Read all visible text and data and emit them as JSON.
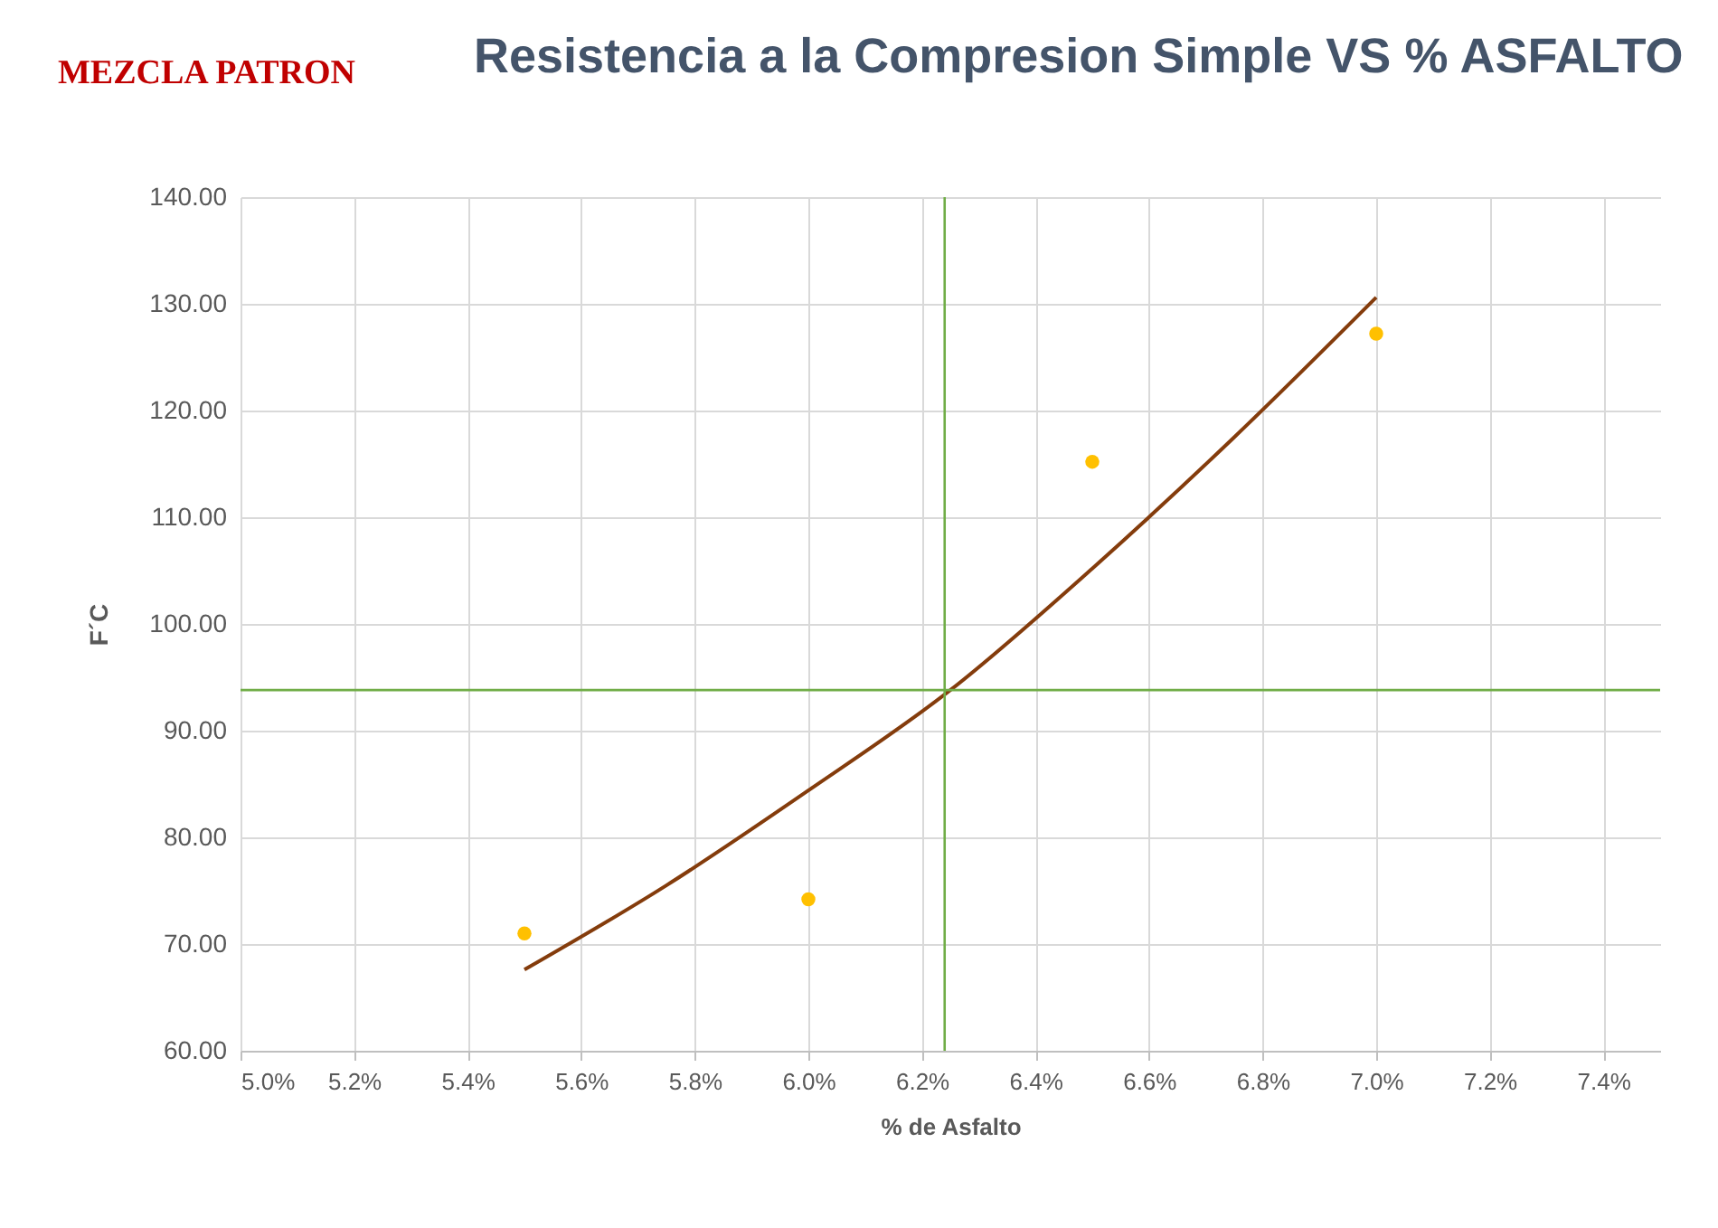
{
  "chart_data": {
    "type": "scatter",
    "title": "Resistencia a la Compresion Simple VS % ASFALTO",
    "xlabel": "% de Asfalto",
    "ylabel": "F´C",
    "annotations": [
      "MEZCLA PATRON"
    ],
    "series": [
      {
        "type": "scatter",
        "color": "#ffc000",
        "x": [
          5.5,
          6.0,
          6.5,
          7.0
        ],
        "values": [
          71.0,
          74.2,
          115.2,
          127.2
        ],
        "marker": "circle"
      },
      {
        "type": "line",
        "color": "#843c0c",
        "x": [
          5.5,
          5.75,
          6.0,
          6.25,
          6.5,
          6.75,
          7.0
        ],
        "values": [
          67.6,
          75.5,
          84.4,
          93.8,
          105.2,
          117.5,
          130.6
        ],
        "marker": "none"
      }
    ],
    "xlim": [
      5.0,
      7.5
    ],
    "xticks": [
      {
        "value": 5.0,
        "label": "5.0%"
      },
      {
        "value": 5.2,
        "label": "5.2%"
      },
      {
        "value": 5.4,
        "label": "5.4%"
      },
      {
        "value": 5.6,
        "label": "5.6%"
      },
      {
        "value": 5.8,
        "label": "5.8%"
      },
      {
        "value": 6.0,
        "label": "6.0%"
      },
      {
        "value": 6.2,
        "label": "6.2%"
      },
      {
        "value": 6.4,
        "label": "6.4%"
      },
      {
        "value": 6.6,
        "label": "6.6%"
      },
      {
        "value": 6.8,
        "label": "6.8%"
      },
      {
        "value": 7.0,
        "label": "7.0%"
      },
      {
        "value": 7.2,
        "label": "7.2%"
      },
      {
        "value": 7.4,
        "label": "7.4%"
      }
    ],
    "ylim": [
      60,
      140
    ],
    "yticks": [
      {
        "value": 60,
        "label": "60.00"
      },
      {
        "value": 70,
        "label": "70.00"
      },
      {
        "value": 80,
        "label": "80.00"
      },
      {
        "value": 90,
        "label": "90.00"
      },
      {
        "value": 100,
        "label": "100.00"
      },
      {
        "value": 110,
        "label": "110.00"
      },
      {
        "value": 120,
        "label": "120.00"
      },
      {
        "value": 130,
        "label": "130.00"
      },
      {
        "value": 140,
        "label": "140.00"
      }
    ],
    "ref_lines": [
      {
        "axis": "x",
        "value": 6.24,
        "color": "#70ad47"
      },
      {
        "axis": "y",
        "value": 93.8,
        "color": "#70ad47"
      }
    ],
    "grid": true
  }
}
